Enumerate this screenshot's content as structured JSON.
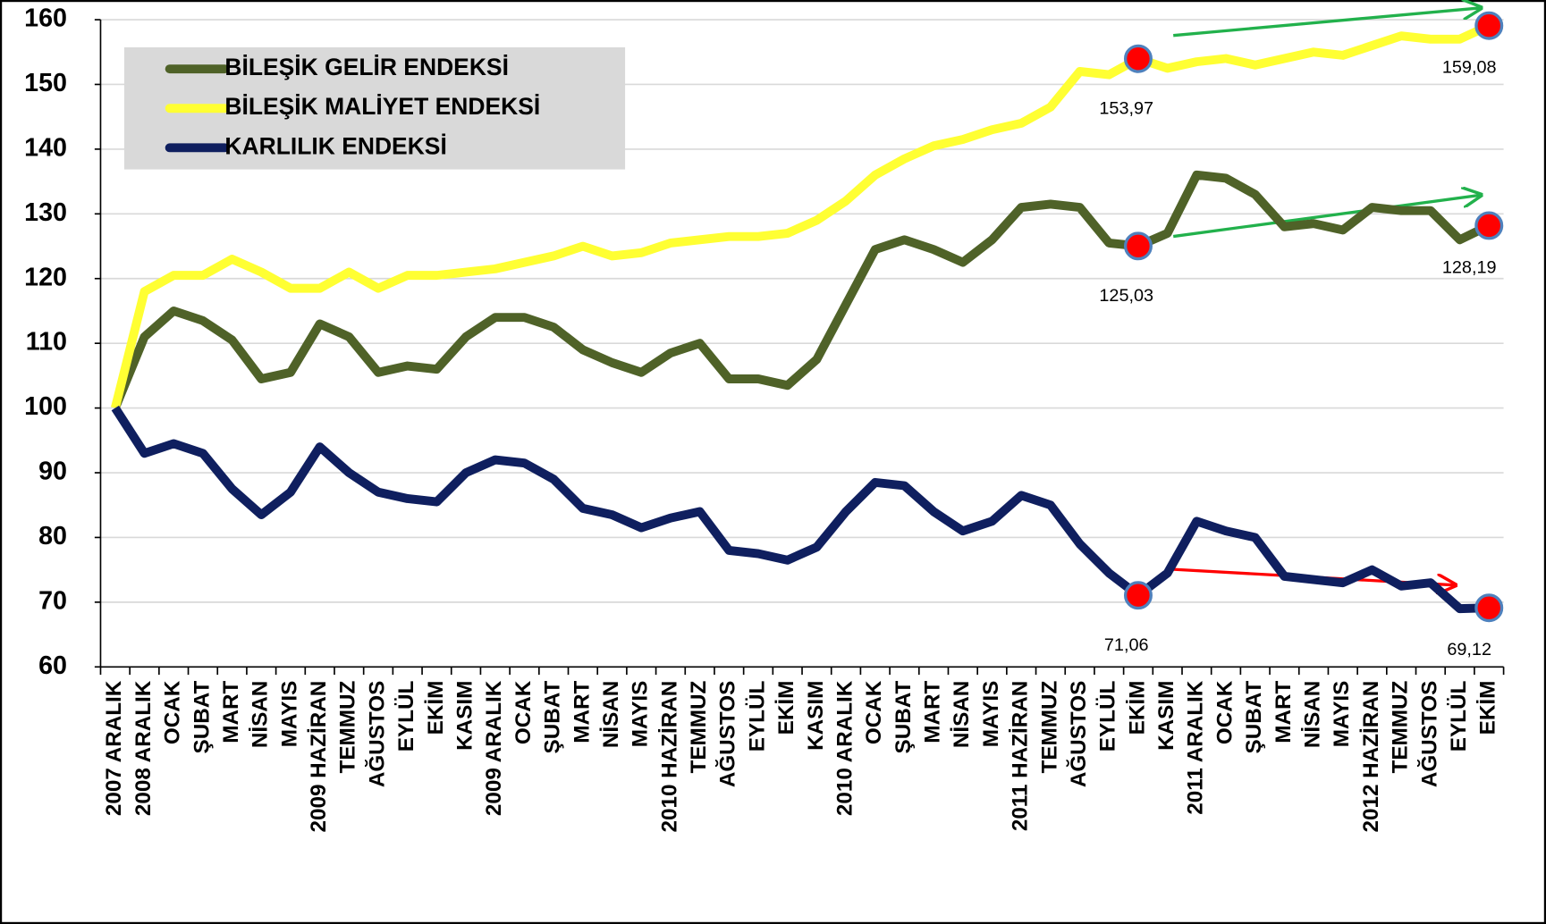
{
  "chart_data": {
    "type": "line",
    "categories": [
      "2007 ARALIK",
      "2008 ARALIK",
      "OCAK",
      "ŞUBAT",
      "MART",
      "NİSAN",
      "MAYIS",
      "2009 HAZİRAN",
      "TEMMUZ",
      "AĞUSTOS",
      "EYLÜL",
      "EKİM",
      "KASIM",
      "2009 ARALIK",
      "OCAK",
      "ŞUBAT",
      "MART",
      "NİSAN",
      "MAYIS",
      "2010 HAZİRAN",
      "TEMMUZ",
      "AĞUSTOS",
      "EYLÜL",
      "EKİM",
      "KASIM",
      "2010 ARALIK",
      "OCAK",
      "ŞUBAT",
      "MART",
      "NİSAN",
      "MAYIS",
      "2011 HAZİRAN",
      "TEMMUZ",
      "AĞUSTOS",
      "EYLÜL",
      "EKİM",
      "KASIM",
      "2011 ARALIK",
      "OCAK",
      "ŞUBAT",
      "MART",
      "NİSAN",
      "MAYIS",
      "2012 HAZİRAN",
      "TEMMUZ",
      "AĞUSTOS",
      "EYLÜL",
      "EKİM"
    ],
    "series": [
      {
        "name": "BİLEŞİK GELİR ENDEKSİ",
        "color": "#4f6228",
        "values": [
          100,
          111,
          115,
          113.5,
          110.5,
          104.5,
          105.5,
          113,
          111,
          105.5,
          106.5,
          106,
          111,
          114,
          114,
          112.5,
          109,
          107,
          105.5,
          108.5,
          110,
          104.5,
          104.5,
          103.5,
          107.5,
          116,
          124.5,
          126,
          124.5,
          122.5,
          126,
          131,
          131.5,
          131,
          125.5,
          125.03,
          127,
          136,
          135.5,
          133,
          128,
          128.5,
          127.5,
          131,
          130.5,
          130.5,
          126,
          128.19
        ],
        "value_labels": [
          null,
          null,
          null,
          null,
          null,
          null,
          null,
          null,
          null,
          null,
          null,
          null,
          null,
          null,
          null,
          null,
          null,
          null,
          null,
          null,
          null,
          null,
          null,
          null,
          null,
          null,
          null,
          null,
          null,
          null,
          null,
          null,
          null,
          null,
          null,
          "125,03",
          null,
          null,
          null,
          null,
          null,
          null,
          null,
          null,
          null,
          null,
          null,
          "128,19"
        ]
      },
      {
        "name": "BİLEŞİK MALİYET ENDEKSİ",
        "color": "#ffff33",
        "values": [
          100,
          118,
          120.5,
          120.5,
          123,
          121,
          118.5,
          118.5,
          121,
          118.5,
          120.5,
          120.5,
          121,
          121.5,
          122.5,
          123.5,
          125,
          123.5,
          124,
          125.5,
          126,
          126.5,
          126.5,
          127,
          129,
          132,
          136,
          138.5,
          140.5,
          141.5,
          143,
          144,
          146.5,
          152,
          151.5,
          153.97,
          152.5,
          153.5,
          154,
          153,
          154,
          155,
          154.5,
          156,
          157.5,
          157,
          157,
          159.08
        ],
        "value_labels": [
          null,
          null,
          null,
          null,
          null,
          null,
          null,
          null,
          null,
          null,
          null,
          null,
          null,
          null,
          null,
          null,
          null,
          null,
          null,
          null,
          null,
          null,
          null,
          null,
          null,
          null,
          null,
          null,
          null,
          null,
          null,
          null,
          null,
          null,
          null,
          "153,97",
          null,
          null,
          null,
          null,
          null,
          null,
          null,
          null,
          null,
          null,
          null,
          "159,08"
        ]
      },
      {
        "name": "KARLILIK ENDEKSİ",
        "color": "#0f1f5f",
        "values": [
          100,
          93,
          94.5,
          93,
          87.5,
          83.5,
          87,
          94,
          90,
          87,
          86,
          85.5,
          90,
          92,
          91.5,
          89,
          84.5,
          83.5,
          81.5,
          83,
          84,
          78,
          77.5,
          76.5,
          78.5,
          84,
          88.5,
          88,
          84,
          81,
          82.5,
          86.5,
          85,
          79,
          74.5,
          71.06,
          74.5,
          82.5,
          81,
          80,
          74,
          73.5,
          73,
          75,
          72.5,
          73,
          69,
          69.12
        ],
        "value_labels": [
          null,
          null,
          null,
          null,
          null,
          null,
          null,
          null,
          null,
          null,
          null,
          null,
          null,
          null,
          null,
          null,
          null,
          null,
          null,
          null,
          null,
          null,
          null,
          null,
          null,
          null,
          null,
          null,
          null,
          null,
          null,
          null,
          null,
          null,
          null,
          "71,06",
          null,
          null,
          null,
          null,
          null,
          null,
          null,
          null,
          null,
          null,
          null,
          "69,12"
        ]
      }
    ],
    "ylim": [
      60,
      160
    ],
    "yticks": [
      60,
      70,
      80,
      90,
      100,
      110,
      120,
      130,
      140,
      150,
      160
    ],
    "grid": true,
    "legend": "upper left"
  }
}
